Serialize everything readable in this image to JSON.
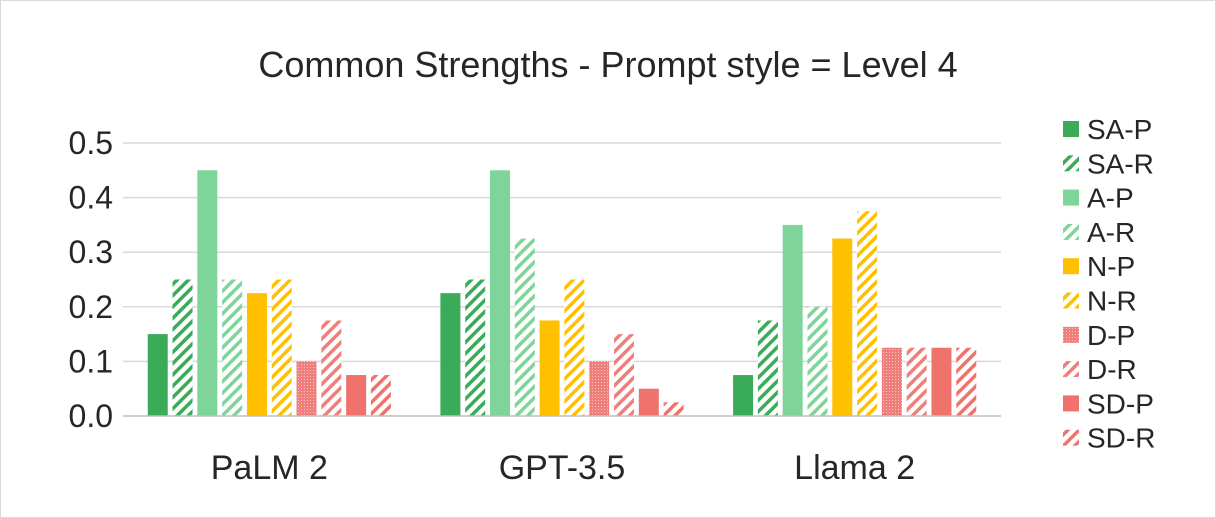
{
  "chart_data": {
    "type": "bar",
    "title": "Common Strengths - Prompt style = Level 4",
    "xlabel": "",
    "ylabel": "",
    "categories": [
      "PaLM 2",
      "GPT-3.5",
      "Llama 2"
    ],
    "ylim": [
      0,
      0.5
    ],
    "yticks": [
      "0.0",
      "0.1",
      "0.2",
      "0.3",
      "0.4",
      "0.5"
    ],
    "grid": true,
    "legend_position": "right",
    "series": [
      {
        "name": "SA-P",
        "color": "#3aab58",
        "pattern": "solid",
        "values": [
          0.15,
          0.225,
          0.075
        ]
      },
      {
        "name": "SA-R",
        "color": "#3aab58",
        "pattern": "hatched",
        "values": [
          0.25,
          0.25,
          0.175
        ]
      },
      {
        "name": "A-P",
        "color": "#7fd49a",
        "pattern": "solid",
        "values": [
          0.45,
          0.45,
          0.35
        ]
      },
      {
        "name": "A-R",
        "color": "#7fd49a",
        "pattern": "hatched",
        "values": [
          0.25,
          0.325,
          0.2
        ]
      },
      {
        "name": "N-P",
        "color": "#ffc000",
        "pattern": "solid",
        "values": [
          0.225,
          0.175,
          0.325
        ]
      },
      {
        "name": "N-R",
        "color": "#ffc000",
        "pattern": "hatched",
        "values": [
          0.25,
          0.25,
          0.375
        ]
      },
      {
        "name": "D-P",
        "color": "#ee7f7b",
        "pattern": "dotted",
        "values": [
          0.1,
          0.1,
          0.125
        ]
      },
      {
        "name": "D-R",
        "color": "#ee7f7b",
        "pattern": "hatched",
        "values": [
          0.175,
          0.15,
          0.125
        ]
      },
      {
        "name": "SD-P",
        "color": "#f0726c",
        "pattern": "solid",
        "values": [
          0.075,
          0.05,
          0.125
        ]
      },
      {
        "name": "SD-R",
        "color": "#f0726c",
        "pattern": "hatched",
        "values": [
          0.075,
          0.025,
          0.125
        ]
      }
    ]
  }
}
